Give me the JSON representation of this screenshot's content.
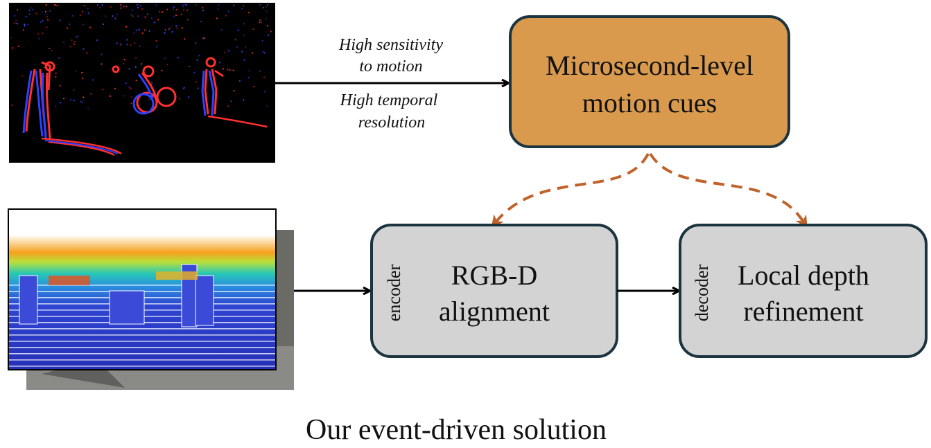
{
  "colors": {
    "box_border": "#1c3440",
    "motion_box_fill": "#d99a4e",
    "grey_box_fill": "#d3d3d3",
    "dashed_arrow": "#c0622a",
    "arrow": "#000000"
  },
  "event_image": {
    "icon": "event-camera-frame-icon"
  },
  "depth_image": {
    "icon": "lidar-depth-projection-icon"
  },
  "event_notes": {
    "line1": "High sensitivity",
    "line2": "to motion",
    "line3": "High temporal",
    "line4": "resolution"
  },
  "motion_box": {
    "line1": "Microsecond-level",
    "line2": "motion cues"
  },
  "encoder_box": {
    "side_label": "encoder",
    "line1": "RGB-D",
    "line2": "alignment"
  },
  "decoder_box": {
    "side_label": "decoder",
    "line1": "Local depth",
    "line2": "refinement"
  },
  "caption": "Our event-driven solution"
}
